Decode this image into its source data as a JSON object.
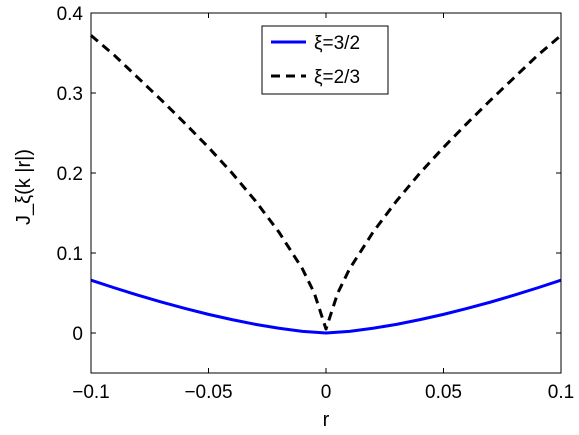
{
  "chart_data": {
    "type": "line",
    "title": "",
    "xlabel": "r",
    "ylabel": "J_ξ(k |r|)",
    "xlim": [
      -0.1,
      0.1
    ],
    "ylim": [
      -0.05,
      0.4
    ],
    "xticks": [
      -0.1,
      -0.05,
      0,
      0.05,
      0.1
    ],
    "xtick_labels": [
      "−0.1",
      "−0.05",
      "0",
      "0.05",
      "0.1"
    ],
    "yticks": [
      0,
      0.1,
      0.2,
      0.3,
      0.4
    ],
    "ytick_labels": [
      "0",
      "0.1",
      "0.2",
      "0.3",
      "0.4"
    ],
    "grid": false,
    "legend_position": "top-center",
    "series": [
      {
        "name": "ξ=3/2",
        "color": "#0000ff",
        "line_style": "solid",
        "x": [
          -0.1,
          -0.09,
          -0.08,
          -0.07,
          -0.06,
          -0.05,
          -0.04,
          -0.03,
          -0.02,
          -0.01,
          0,
          0.01,
          0.02,
          0.03,
          0.04,
          0.05,
          0.06,
          0.07,
          0.08,
          0.09,
          0.1
        ],
        "y": [
          0.066,
          0.0564,
          0.0472,
          0.0386,
          0.0307,
          0.0233,
          0.0167,
          0.0108,
          0.0059,
          0.002,
          0,
          0.002,
          0.0059,
          0.0108,
          0.0167,
          0.0233,
          0.0307,
          0.0386,
          0.0472,
          0.0564,
          0.066
        ]
      },
      {
        "name": "ξ=2/3",
        "color": "#000000",
        "line_style": "dashed",
        "x": [
          -0.1,
          -0.09,
          -0.08,
          -0.07,
          -0.06,
          -0.05,
          -0.04,
          -0.03,
          -0.02,
          -0.01,
          -0.005,
          0,
          0.005,
          0.01,
          0.02,
          0.03,
          0.04,
          0.05,
          0.06,
          0.07,
          0.08,
          0.09,
          0.1
        ],
        "y": [
          0.372,
          0.347,
          0.319,
          0.291,
          0.262,
          0.232,
          0.2,
          0.165,
          0.126,
          0.08,
          0.05,
          0.005,
          0.05,
          0.08,
          0.126,
          0.165,
          0.2,
          0.232,
          0.262,
          0.291,
          0.319,
          0.347,
          0.372
        ]
      }
    ]
  }
}
